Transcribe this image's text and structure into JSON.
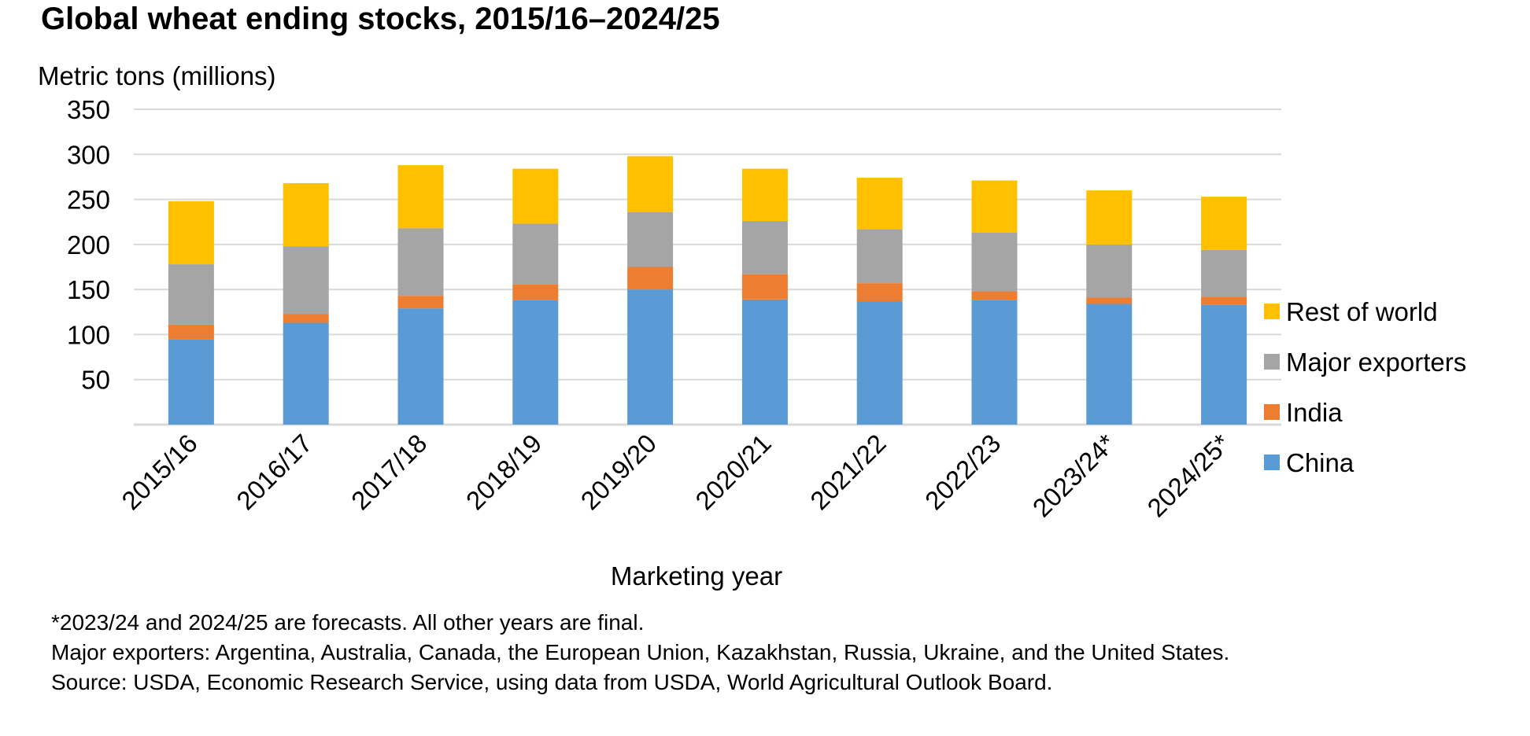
{
  "chart_data": {
    "type": "bar",
    "stacked": true,
    "title": "Global wheat ending stocks, 2015/16–2024/25",
    "ylabel": "Metric tons (millions)",
    "xlabel": "Marketing year",
    "ylim": [
      0,
      350
    ],
    "yticks": [
      50,
      100,
      150,
      200,
      250,
      300,
      350
    ],
    "grid": true,
    "legend_position": "right",
    "categories": [
      "2015/16",
      "2016/17",
      "2017/18",
      "2018/19",
      "2019/20",
      "2020/21",
      "2021/22",
      "2022/23",
      "2023/24*",
      "2024/25*"
    ],
    "series": [
      {
        "name": "China",
        "color": "#5B9BD5",
        "values": [
          95,
          113,
          129,
          138,
          150,
          139,
          137,
          138,
          134,
          133
        ]
      },
      {
        "name": "India",
        "color": "#ED7D31",
        "values": [
          16,
          10,
          14,
          18,
          25,
          28,
          20,
          10,
          7,
          9
        ]
      },
      {
        "name": "Major exporters",
        "color": "#A5A5A5",
        "values": [
          67,
          75,
          75,
          67,
          61,
          59,
          60,
          65,
          59,
          52
        ]
      },
      {
        "name": "Rest of world",
        "color": "#FFC000",
        "values": [
          70,
          70,
          70,
          61,
          62,
          58,
          57,
          58,
          60,
          59
        ]
      }
    ],
    "legend_order": [
      "Rest of world",
      "Major exporters",
      "India",
      "China"
    ]
  },
  "notes": [
    "*2023/24 and 2024/25 are forecasts. All other years are final.",
    "Major exporters: Argentina, Australia, Canada, the European Union, Kazakhstan, Russia, Ukraine, and the United States.",
    "Source: USDA, Economic Research Service, using data from USDA, World Agricultural Outlook Board."
  ]
}
